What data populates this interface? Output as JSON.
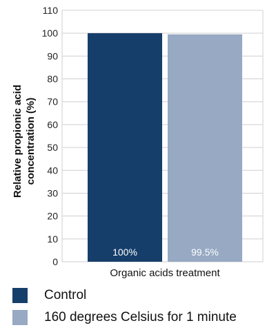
{
  "chart_data": {
    "type": "bar",
    "title": "",
    "xlabel": "Organic acids treatment",
    "ylabel": "Relative propionic acid concentration (%)",
    "ylabel_lines": [
      "Relative propionic acid",
      "concentration (%)"
    ],
    "ylim": [
      0,
      110
    ],
    "yticks": [
      0,
      10,
      20,
      30,
      40,
      50,
      60,
      70,
      80,
      90,
      100,
      110
    ],
    "grid": true,
    "legend_position": "bottom",
    "series": [
      {
        "name": "Control",
        "value": 100,
        "label": "100%",
        "color": "#163e6b"
      },
      {
        "name": "160 degrees Celsius for 1 minute",
        "value": 99.5,
        "label": "99.5%",
        "color": "#97a9c3"
      }
    ]
  }
}
